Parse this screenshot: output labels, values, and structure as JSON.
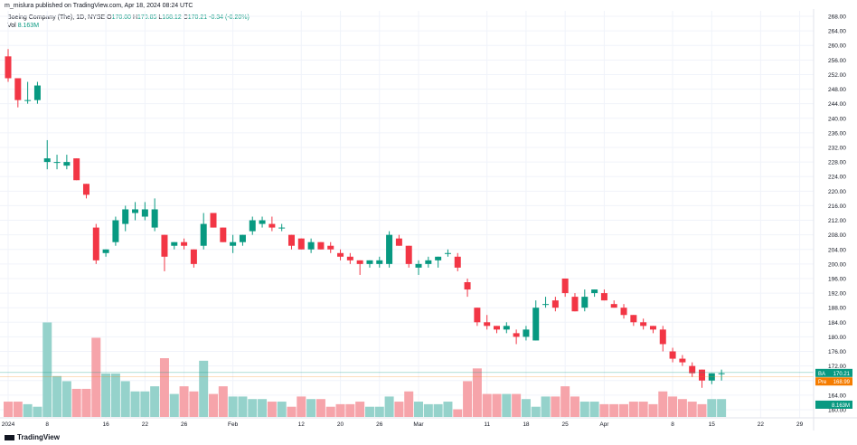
{
  "header": {
    "published": "m_mislura published on TradingView.com, Apr 18, 2024 08:24 UTC"
  },
  "legend": {
    "symbol": "Boeing Company (The), 1D, NYSE",
    "open_label": "O",
    "open": "170.00",
    "high_label": "H",
    "high": "170.85",
    "low_label": "L",
    "low": "168.12",
    "close_label": "C",
    "close": "170.21",
    "change": "-0.34 (-0.20%)",
    "vol_label": "Vol",
    "vol_value": "8.163M"
  },
  "branding": {
    "text": "TradingView"
  },
  "chart_data": {
    "type": "candlestick",
    "symbol": "BA",
    "ylim": [
      158,
      269
    ],
    "y_ticks": [
      160,
      164,
      168,
      172,
      176,
      180,
      184,
      188,
      192,
      196,
      200,
      204,
      208,
      212,
      216,
      220,
      224,
      228,
      232,
      236,
      240,
      244,
      248,
      252,
      256,
      260,
      264,
      268
    ],
    "x_ticks": [
      {
        "i": 0,
        "label": "2024"
      },
      {
        "i": 4,
        "label": "8"
      },
      {
        "i": 10,
        "label": "16"
      },
      {
        "i": 14,
        "label": "22"
      },
      {
        "i": 18,
        "label": "26"
      },
      {
        "i": 23,
        "label": "Feb"
      },
      {
        "i": 30,
        "label": "12"
      },
      {
        "i": 34,
        "label": "20"
      },
      {
        "i": 38,
        "label": "26"
      },
      {
        "i": 42,
        "label": "Mar"
      },
      {
        "i": 49,
        "label": "11"
      },
      {
        "i": 53,
        "label": "18"
      },
      {
        "i": 57,
        "label": "25"
      },
      {
        "i": 61,
        "label": "Apr"
      },
      {
        "i": 68,
        "label": "8"
      },
      {
        "i": 72,
        "label": "15"
      },
      {
        "i": 77,
        "label": "22"
      },
      {
        "i": 81,
        "label": "29"
      }
    ],
    "candles": [
      {
        "o": 257,
        "h": 259,
        "l": 250,
        "c": 251
      },
      {
        "o": 251,
        "h": 250,
        "l": 243,
        "c": 245
      },
      {
        "o": 245,
        "h": 250,
        "l": 244,
        "c": 245
      },
      {
        "o": 245,
        "h": 250,
        "l": 244,
        "c": 249
      },
      {
        "o": 228,
        "h": 234,
        "l": 226,
        "c": 229
      },
      {
        "o": 228,
        "h": 230,
        "l": 226,
        "c": 228
      },
      {
        "o": 227,
        "h": 230,
        "l": 226,
        "c": 228
      },
      {
        "o": 229,
        "h": 228,
        "l": 223,
        "c": 223
      },
      {
        "o": 222,
        "h": 222,
        "l": 218,
        "c": 219
      },
      {
        "o": 210,
        "h": 211,
        "l": 200,
        "c": 201
      },
      {
        "o": 203,
        "h": 204,
        "l": 202,
        "c": 204
      },
      {
        "o": 206,
        "h": 213,
        "l": 205,
        "c": 212
      },
      {
        "o": 211,
        "h": 216,
        "l": 209,
        "c": 215
      },
      {
        "o": 214,
        "h": 217,
        "l": 212,
        "c": 215
      },
      {
        "o": 213,
        "h": 217,
        "l": 212,
        "c": 215
      },
      {
        "o": 210,
        "h": 218,
        "l": 209,
        "c": 215
      },
      {
        "o": 208,
        "h": 208,
        "l": 198,
        "c": 202
      },
      {
        "o": 205,
        "h": 206,
        "l": 204,
        "c": 206
      },
      {
        "o": 206,
        "h": 207,
        "l": 204,
        "c": 205
      },
      {
        "o": 204,
        "h": 203,
        "l": 199,
        "c": 200
      },
      {
        "o": 205,
        "h": 214,
        "l": 204,
        "c": 211
      },
      {
        "o": 214,
        "h": 214,
        "l": 210,
        "c": 210
      },
      {
        "o": 210,
        "h": 210,
        "l": 206,
        "c": 206
      },
      {
        "o": 205,
        "h": 208,
        "l": 203,
        "c": 206
      },
      {
        "o": 206,
        "h": 208,
        "l": 205,
        "c": 208
      },
      {
        "o": 209,
        "h": 213,
        "l": 208,
        "c": 212
      },
      {
        "o": 211,
        "h": 213,
        "l": 210,
        "c": 212
      },
      {
        "o": 211,
        "h": 213,
        "l": 209,
        "c": 210
      },
      {
        "o": 210,
        "h": 211,
        "l": 209,
        "c": 210
      },
      {
        "o": 208,
        "h": 208,
        "l": 204,
        "c": 205
      },
      {
        "o": 207,
        "h": 207,
        "l": 204,
        "c": 204
      },
      {
        "o": 204,
        "h": 207,
        "l": 203,
        "c": 206
      },
      {
        "o": 206,
        "h": 206,
        "l": 204,
        "c": 204
      },
      {
        "o": 205,
        "h": 206,
        "l": 203,
        "c": 204
      },
      {
        "o": 203,
        "h": 204,
        "l": 201,
        "c": 202
      },
      {
        "o": 202,
        "h": 203,
        "l": 200,
        "c": 201
      },
      {
        "o": 201,
        "h": 201,
        "l": 197,
        "c": 200
      },
      {
        "o": 200,
        "h": 201,
        "l": 199,
        "c": 201
      },
      {
        "o": 200,
        "h": 202,
        "l": 199,
        "c": 201
      },
      {
        "o": 200,
        "h": 209,
        "l": 199,
        "c": 208
      },
      {
        "o": 207,
        "h": 208,
        "l": 205,
        "c": 205
      },
      {
        "o": 205,
        "h": 205,
        "l": 199,
        "c": 200
      },
      {
        "o": 199,
        "h": 201,
        "l": 197,
        "c": 200
      },
      {
        "o": 200,
        "h": 202,
        "l": 199,
        "c": 201
      },
      {
        "o": 201,
        "h": 202,
        "l": 199,
        "c": 202
      },
      {
        "o": 203,
        "h": 204,
        "l": 202,
        "c": 203
      },
      {
        "o": 202,
        "h": 203,
        "l": 198,
        "c": 199
      },
      {
        "o": 195,
        "h": 196,
        "l": 191,
        "c": 193
      },
      {
        "o": 188,
        "h": 188,
        "l": 183,
        "c": 184
      },
      {
        "o": 184,
        "h": 186,
        "l": 182,
        "c": 183
      },
      {
        "o": 183,
        "h": 183,
        "l": 181,
        "c": 182
      },
      {
        "o": 182,
        "h": 184,
        "l": 181,
        "c": 183
      },
      {
        "o": 181,
        "h": 182,
        "l": 178,
        "c": 180
      },
      {
        "o": 180,
        "h": 183,
        "l": 179,
        "c": 182
      },
      {
        "o": 179,
        "h": 190,
        "l": 179,
        "c": 188
      },
      {
        "o": 189,
        "h": 191,
        "l": 188,
        "c": 189
      },
      {
        "o": 190,
        "h": 191,
        "l": 187,
        "c": 188
      },
      {
        "o": 196,
        "h": 196,
        "l": 191,
        "c": 192
      },
      {
        "o": 191,
        "h": 192,
        "l": 187,
        "c": 187
      },
      {
        "o": 188,
        "h": 193,
        "l": 187,
        "c": 191
      },
      {
        "o": 192,
        "h": 193,
        "l": 191,
        "c": 193
      },
      {
        "o": 192,
        "h": 193,
        "l": 190,
        "c": 190
      },
      {
        "o": 189,
        "h": 190,
        "l": 188,
        "c": 188
      },
      {
        "o": 188,
        "h": 189,
        "l": 185,
        "c": 186
      },
      {
        "o": 186,
        "h": 186,
        "l": 183,
        "c": 184
      },
      {
        "o": 184,
        "h": 185,
        "l": 182,
        "c": 183
      },
      {
        "o": 183,
        "h": 183,
        "l": 181,
        "c": 182
      },
      {
        "o": 182,
        "h": 183,
        "l": 176,
        "c": 178
      },
      {
        "o": 176,
        "h": 177,
        "l": 173,
        "c": 174
      },
      {
        "o": 174,
        "h": 175,
        "l": 172,
        "c": 173
      },
      {
        "o": 172,
        "h": 173,
        "l": 169,
        "c": 170
      },
      {
        "o": 171,
        "h": 171,
        "l": 166,
        "c": 168
      },
      {
        "o": 168,
        "h": 170,
        "l": 167,
        "c": 170
      },
      {
        "o": 170,
        "h": 171,
        "l": 168,
        "c": 170
      }
    ],
    "volume_ylim": [
      0,
      40
    ],
    "volumes": [
      6,
      6,
      5,
      4,
      37,
      16,
      14,
      11,
      11,
      31,
      17,
      17,
      14,
      10,
      10,
      12,
      23,
      9,
      12,
      10,
      22,
      9,
      12,
      8,
      8,
      7,
      7,
      6,
      6,
      4,
      8,
      7,
      7,
      4,
      5,
      5,
      6,
      4,
      4,
      8,
      6,
      10,
      6,
      5,
      5,
      6,
      3,
      14,
      19,
      9,
      9,
      9,
      9,
      7,
      4,
      8,
      8,
      12,
      8,
      6,
      6,
      5,
      5,
      5,
      6,
      6,
      5,
      10,
      8,
      7,
      6,
      5,
      7,
      7
    ],
    "last_price": 170.21,
    "premarket_price": 168.99,
    "last_volume": "8.163M",
    "premarket_label": "Pre",
    "colors": {
      "up": "#089981",
      "down": "#f23645",
      "vol_up": "#95d2cb",
      "vol_down": "#f6a4aa",
      "premarket": "#f57c00",
      "grid": "#f0f3fa",
      "axis_text": "#131722"
    }
  }
}
